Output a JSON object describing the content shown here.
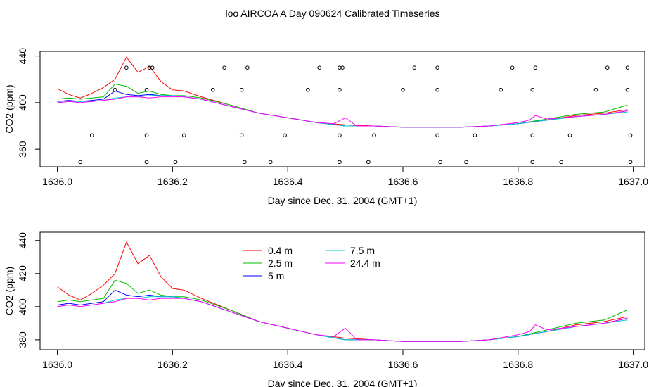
{
  "title": "loo AIRCOA A  Day 090624  Calibrated Timeseries",
  "chart_data": [
    {
      "type": "line",
      "panel": "top",
      "xlabel": "Day since Dec. 31, 2004 (GMT+1)",
      "ylabel": "CO2 (ppm)",
      "xlim": [
        1635.97,
        1637.02
      ],
      "ylim": [
        345,
        444
      ],
      "xticks": [
        1636.0,
        1636.2,
        1636.4,
        1636.6,
        1636.8,
        1637.0
      ],
      "xtick_labels": [
        "1636.0",
        "1636.2",
        "1636.4",
        "1636.6",
        "1636.8",
        "1637.0"
      ],
      "yticks": [
        360,
        400,
        440
      ],
      "ytick_labels": [
        "360",
        "400",
        "440"
      ],
      "series_colors": [
        "#ff0000",
        "#00bb00",
        "#0000ff",
        "#00cccc",
        "#ff00ff"
      ],
      "series": [
        {
          "x": [
            1636.0,
            1636.02,
            1636.04,
            1636.06,
            1636.08,
            1636.1,
            1636.12,
            1636.14,
            1636.16,
            1636.18,
            1636.2,
            1636.22,
            1636.25,
            1636.3,
            1636.35,
            1636.4,
            1636.45,
            1636.5,
            1636.55,
            1636.6,
            1636.65,
            1636.7,
            1636.75,
            1636.8,
            1636.85,
            1636.9,
            1636.95,
            1636.99
          ],
          "values": [
            412,
            407,
            404,
            408,
            413,
            420,
            439,
            426,
            431,
            418,
            411,
            410,
            405,
            398,
            391,
            387,
            383,
            381,
            380,
            379,
            379,
            379,
            380,
            382,
            385,
            389,
            391,
            394
          ]
        },
        {
          "x": [
            1636.0,
            1636.02,
            1636.04,
            1636.06,
            1636.08,
            1636.1,
            1636.12,
            1636.14,
            1636.16,
            1636.18,
            1636.2,
            1636.22,
            1636.25,
            1636.3,
            1636.35,
            1636.4,
            1636.45,
            1636.5,
            1636.55,
            1636.6,
            1636.65,
            1636.7,
            1636.75,
            1636.8,
            1636.85,
            1636.9,
            1636.95,
            1636.99
          ],
          "values": [
            403,
            404,
            403,
            404,
            405,
            416,
            414,
            408,
            410,
            407,
            406,
            406,
            404,
            398,
            391,
            387,
            383,
            380,
            380,
            379,
            379,
            379,
            380,
            382,
            386,
            390,
            392,
            398
          ]
        },
        {
          "x": [
            1636.0,
            1636.02,
            1636.04,
            1636.06,
            1636.08,
            1636.1,
            1636.12,
            1636.14,
            1636.16,
            1636.18,
            1636.2,
            1636.22,
            1636.25,
            1636.3,
            1636.35,
            1636.4,
            1636.45,
            1636.5,
            1636.55,
            1636.6,
            1636.65,
            1636.7,
            1636.75,
            1636.8,
            1636.85,
            1636.9,
            1636.95,
            1636.99
          ],
          "values": [
            401,
            402,
            401,
            402,
            403,
            410,
            407,
            406,
            407,
            406,
            406,
            405,
            403,
            397,
            391,
            387,
            383,
            380,
            380,
            379,
            379,
            379,
            380,
            382,
            385,
            388,
            390,
            393
          ]
        },
        {
          "x": [
            1636.0,
            1636.02,
            1636.04,
            1636.06,
            1636.08,
            1636.1,
            1636.12,
            1636.14,
            1636.16,
            1636.18,
            1636.2,
            1636.22,
            1636.25,
            1636.3,
            1636.35,
            1636.4,
            1636.45,
            1636.5,
            1636.55,
            1636.6,
            1636.65,
            1636.7,
            1636.75,
            1636.8,
            1636.85,
            1636.9,
            1636.95,
            1636.99
          ],
          "values": [
            400,
            401,
            401,
            401,
            402,
            404,
            405,
            405,
            406,
            406,
            406,
            405,
            403,
            397,
            391,
            387,
            383,
            380,
            380,
            379,
            379,
            379,
            380,
            382,
            385,
            388,
            390,
            392
          ]
        },
        {
          "x": [
            1636.0,
            1636.02,
            1636.04,
            1636.06,
            1636.08,
            1636.1,
            1636.12,
            1636.14,
            1636.16,
            1636.18,
            1636.2,
            1636.22,
            1636.25,
            1636.3,
            1636.35,
            1636.4,
            1636.45,
            1636.48,
            1636.5,
            1636.52,
            1636.55,
            1636.6,
            1636.65,
            1636.7,
            1636.75,
            1636.8,
            1636.82,
            1636.83,
            1636.85,
            1636.9,
            1636.95,
            1636.99
          ],
          "values": [
            400,
            401,
            400,
            401,
            402,
            403,
            405,
            405,
            404,
            405,
            405,
            405,
            403,
            397,
            391,
            387,
            383,
            382,
            387,
            380,
            380,
            379,
            379,
            379,
            380,
            383,
            385,
            389,
            386,
            388,
            390,
            393
          ]
        }
      ],
      "markers": {
        "symbol": "open-circle",
        "x": [
          1636.04,
          1636.06,
          1636.1,
          1636.12,
          1636.155,
          1636.155,
          1636.155,
          1636.16,
          1636.165,
          1636.205,
          1636.22,
          1636.27,
          1636.29,
          1636.32,
          1636.32,
          1636.325,
          1636.33,
          1636.37,
          1636.395,
          1636.435,
          1636.455,
          1636.49,
          1636.49,
          1636.49,
          1636.49,
          1636.495,
          1636.54,
          1636.55,
          1636.6,
          1636.62,
          1636.66,
          1636.66,
          1636.66,
          1636.665,
          1636.71,
          1636.725,
          1636.77,
          1636.79,
          1636.825,
          1636.825,
          1636.825,
          1636.83,
          1636.875,
          1636.89,
          1636.935,
          1636.955,
          1636.99,
          1636.99,
          1636.995,
          1636.995
        ],
        "values": [
          349,
          372,
          411,
          430,
          349,
          372,
          411,
          430,
          430,
          349,
          372,
          411,
          430,
          411,
          372,
          349,
          430,
          349,
          372,
          411,
          430,
          349,
          372,
          411,
          430,
          430,
          349,
          372,
          411,
          430,
          430,
          411,
          372,
          349,
          349,
          372,
          411,
          430,
          349,
          372,
          411,
          430,
          349,
          372,
          411,
          430,
          430,
          411,
          372,
          349
        ]
      }
    },
    {
      "type": "line",
      "panel": "bottom",
      "xlabel": "Day since Dec. 31, 2004 (GMT+1)",
      "ylabel": "CO2 (ppm)",
      "xlim": [
        1635.97,
        1637.02
      ],
      "ylim": [
        374,
        445
      ],
      "xticks": [
        1636.0,
        1636.2,
        1636.4,
        1636.6,
        1636.8,
        1637.0
      ],
      "xtick_labels": [
        "1636.0",
        "1636.2",
        "1636.4",
        "1636.6",
        "1636.8",
        "1637.0"
      ],
      "yticks": [
        380,
        400,
        420,
        440
      ],
      "ytick_labels": [
        "380",
        "400",
        "420",
        "440"
      ],
      "legend": {
        "placement": "top-center",
        "entries": [
          {
            "label": "0.4 m",
            "color": "#ff0000"
          },
          {
            "label": "2.5 m",
            "color": "#00bb00"
          },
          {
            "label": "5 m",
            "color": "#0000ff"
          },
          {
            "label": "7.5 m",
            "color": "#00cccc"
          },
          {
            "label": "24.4 m",
            "color": "#ff00ff"
          }
        ]
      },
      "series": [
        {
          "name": "0.4 m",
          "color": "#ff0000",
          "x": [
            1636.0,
            1636.02,
            1636.04,
            1636.06,
            1636.08,
            1636.1,
            1636.12,
            1636.14,
            1636.16,
            1636.18,
            1636.2,
            1636.22,
            1636.25,
            1636.3,
            1636.35,
            1636.4,
            1636.45,
            1636.5,
            1636.55,
            1636.6,
            1636.65,
            1636.7,
            1636.75,
            1636.8,
            1636.85,
            1636.9,
            1636.95,
            1636.99
          ],
          "values": [
            412,
            407,
            404,
            408,
            413,
            420,
            439,
            426,
            431,
            418,
            411,
            410,
            405,
            398,
            391,
            387,
            383,
            381,
            380,
            379,
            379,
            379,
            380,
            382,
            385,
            389,
            391,
            394
          ]
        },
        {
          "name": "2.5 m",
          "color": "#00bb00",
          "x": [
            1636.0,
            1636.02,
            1636.04,
            1636.06,
            1636.08,
            1636.1,
            1636.12,
            1636.14,
            1636.16,
            1636.18,
            1636.2,
            1636.22,
            1636.25,
            1636.3,
            1636.35,
            1636.4,
            1636.45,
            1636.5,
            1636.55,
            1636.6,
            1636.65,
            1636.7,
            1636.75,
            1636.8,
            1636.85,
            1636.9,
            1636.95,
            1636.99
          ],
          "values": [
            403,
            404,
            403,
            404,
            405,
            416,
            414,
            408,
            410,
            407,
            406,
            406,
            404,
            398,
            391,
            387,
            383,
            380,
            380,
            379,
            379,
            379,
            380,
            382,
            386,
            390,
            392,
            398
          ]
        },
        {
          "name": "5 m",
          "color": "#0000ff",
          "x": [
            1636.0,
            1636.02,
            1636.04,
            1636.06,
            1636.08,
            1636.1,
            1636.12,
            1636.14,
            1636.16,
            1636.18,
            1636.2,
            1636.22,
            1636.25,
            1636.3,
            1636.35,
            1636.4,
            1636.45,
            1636.5,
            1636.55,
            1636.6,
            1636.65,
            1636.7,
            1636.75,
            1636.8,
            1636.85,
            1636.9,
            1636.95,
            1636.99
          ],
          "values": [
            401,
            402,
            401,
            402,
            403,
            410,
            407,
            406,
            407,
            406,
            406,
            405,
            403,
            397,
            391,
            387,
            383,
            380,
            380,
            379,
            379,
            379,
            380,
            382,
            385,
            388,
            390,
            393
          ]
        },
        {
          "name": "7.5 m",
          "color": "#00cccc",
          "x": [
            1636.0,
            1636.02,
            1636.04,
            1636.06,
            1636.08,
            1636.1,
            1636.12,
            1636.14,
            1636.16,
            1636.18,
            1636.2,
            1636.22,
            1636.25,
            1636.3,
            1636.35,
            1636.4,
            1636.45,
            1636.5,
            1636.55,
            1636.6,
            1636.65,
            1636.7,
            1636.75,
            1636.8,
            1636.85,
            1636.9,
            1636.95,
            1636.99
          ],
          "values": [
            400,
            401,
            401,
            401,
            402,
            404,
            405,
            405,
            406,
            406,
            406,
            405,
            403,
            397,
            391,
            387,
            383,
            380,
            380,
            379,
            379,
            379,
            380,
            382,
            385,
            388,
            390,
            392
          ]
        },
        {
          "name": "24.4 m",
          "color": "#ff00ff",
          "x": [
            1636.0,
            1636.02,
            1636.04,
            1636.06,
            1636.08,
            1636.1,
            1636.12,
            1636.14,
            1636.16,
            1636.18,
            1636.2,
            1636.22,
            1636.25,
            1636.3,
            1636.35,
            1636.4,
            1636.45,
            1636.48,
            1636.5,
            1636.52,
            1636.55,
            1636.6,
            1636.65,
            1636.7,
            1636.75,
            1636.8,
            1636.82,
            1636.83,
            1636.85,
            1636.9,
            1636.95,
            1636.99
          ],
          "values": [
            400,
            401,
            400,
            401,
            402,
            403,
            405,
            405,
            404,
            405,
            405,
            405,
            403,
            397,
            391,
            387,
            383,
            382,
            387,
            380,
            380,
            379,
            379,
            379,
            380,
            383,
            385,
            389,
            386,
            388,
            390,
            393
          ]
        }
      ]
    }
  ]
}
